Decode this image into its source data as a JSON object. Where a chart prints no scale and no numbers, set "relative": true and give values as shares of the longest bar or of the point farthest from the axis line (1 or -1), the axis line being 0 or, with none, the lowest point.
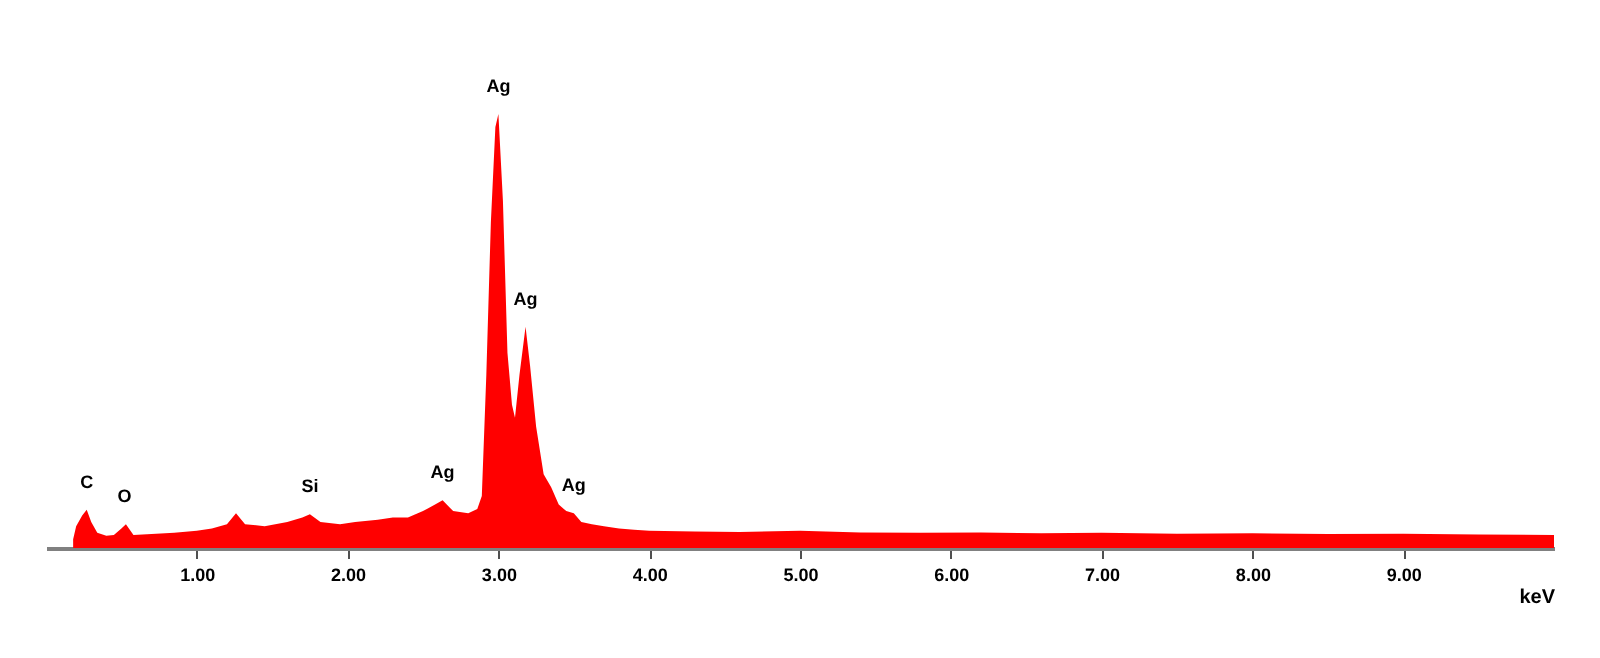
{
  "chart_data": {
    "type": "area",
    "relative": true,
    "xlabel": "keV",
    "xlim": [
      0,
      10
    ],
    "xticks": [
      {
        "value": 1,
        "label": "1.00"
      },
      {
        "value": 2,
        "label": "2.00"
      },
      {
        "value": 3,
        "label": "3.00"
      },
      {
        "value": 4,
        "label": "4.00"
      },
      {
        "value": 5,
        "label": "5.00"
      },
      {
        "value": 6,
        "label": "6.00"
      },
      {
        "value": 7,
        "label": "7.00"
      },
      {
        "value": 8,
        "label": "8.00"
      },
      {
        "value": 9,
        "label": "9.00"
      }
    ],
    "series": [
      {
        "color": "#ff0000",
        "x": [
          0.18,
          0.2,
          0.24,
          0.27,
          0.3,
          0.34,
          0.4,
          0.45,
          0.5,
          0.53,
          0.58,
          0.7,
          0.85,
          1.0,
          1.1,
          1.2,
          1.26,
          1.32,
          1.45,
          1.6,
          1.7,
          1.75,
          1.82,
          1.95,
          2.05,
          2.2,
          2.3,
          2.4,
          2.5,
          2.58,
          2.63,
          2.7,
          2.8,
          2.86,
          2.89,
          2.92,
          2.95,
          2.98,
          3.0,
          3.03,
          3.06,
          3.09,
          3.11,
          3.14,
          3.18,
          3.21,
          3.25,
          3.3,
          3.35,
          3.4,
          3.45,
          3.5,
          3.55,
          3.62,
          3.7,
          3.8,
          3.9,
          4.0,
          4.3,
          4.6,
          5.0,
          5.4,
          5.8,
          6.2,
          6.6,
          7.0,
          7.5,
          8.0,
          8.5,
          9.0,
          9.5,
          10.0
        ],
        "values": [
          0.02,
          0.05,
          0.075,
          0.088,
          0.06,
          0.035,
          0.028,
          0.03,
          0.045,
          0.055,
          0.03,
          0.032,
          0.035,
          0.04,
          0.045,
          0.055,
          0.08,
          0.055,
          0.05,
          0.06,
          0.07,
          0.078,
          0.06,
          0.055,
          0.06,
          0.065,
          0.07,
          0.07,
          0.085,
          0.1,
          0.11,
          0.085,
          0.08,
          0.09,
          0.12,
          0.4,
          0.75,
          0.97,
          1.0,
          0.8,
          0.45,
          0.33,
          0.3,
          0.4,
          0.51,
          0.42,
          0.28,
          0.17,
          0.14,
          0.1,
          0.085,
          0.08,
          0.06,
          0.055,
          0.05,
          0.045,
          0.042,
          0.04,
          0.038,
          0.037,
          0.04,
          0.036,
          0.035,
          0.036,
          0.034,
          0.035,
          0.033,
          0.034,
          0.032,
          0.033,
          0.031,
          0.03
        ]
      }
    ],
    "annotations": [
      {
        "text": "C",
        "x": 0.27,
        "y": 0.088
      },
      {
        "text": "O",
        "x": 0.52,
        "y": 0.055
      },
      {
        "text": "Si",
        "x": 1.75,
        "y": 0.078
      },
      {
        "text": "Ag",
        "x": 2.63,
        "y": 0.11
      },
      {
        "text": "Ag",
        "x": 3.0,
        "y": 1.0
      },
      {
        "text": "Ag",
        "x": 3.18,
        "y": 0.51
      },
      {
        "text": "Ag",
        "x": 3.5,
        "y": 0.08
      }
    ],
    "grid": false
  }
}
